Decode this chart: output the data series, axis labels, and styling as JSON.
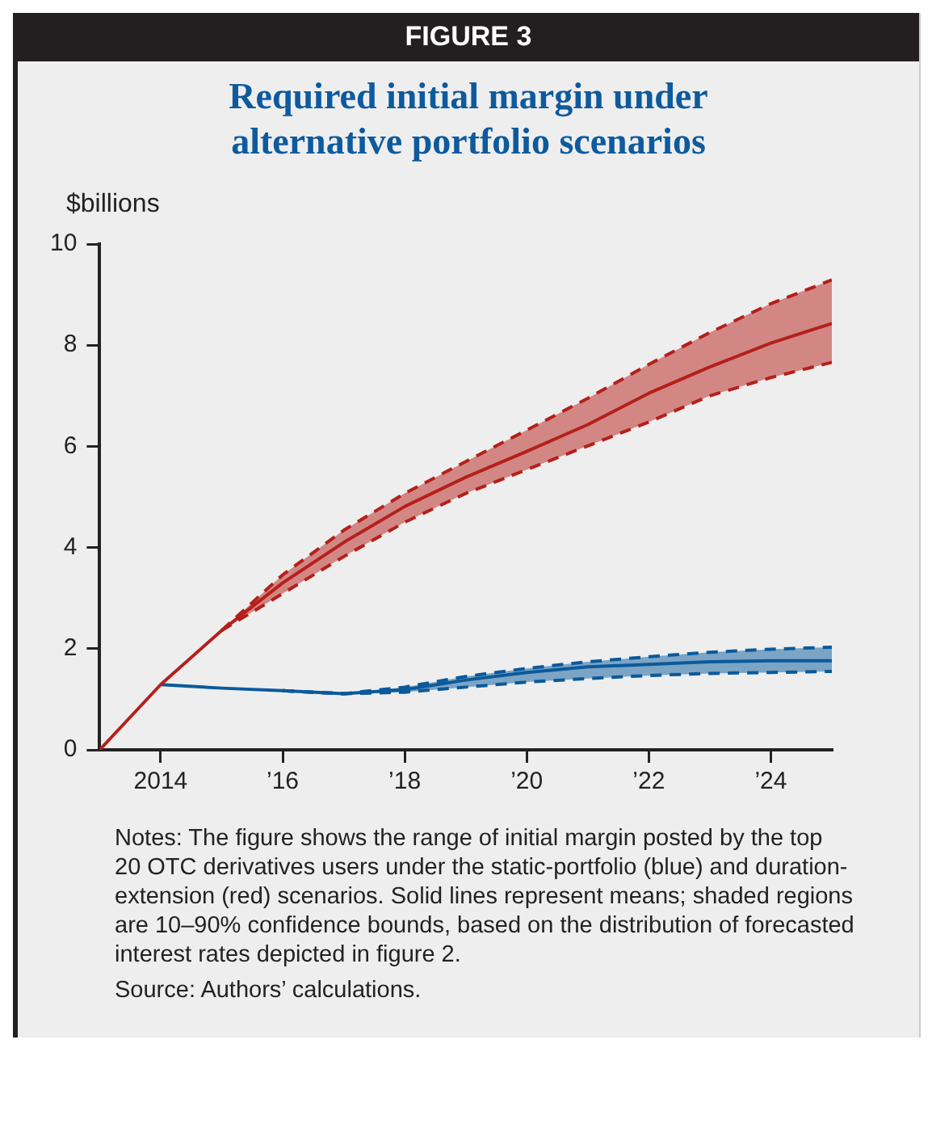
{
  "chart_data": {
    "type": "line",
    "subtitle": "FIGURE 3",
    "title": "Required initial margin under alternative portfolio scenarios",
    "ylabel": "$billions",
    "x": [
      2013,
      2014,
      2015,
      2016,
      2017,
      2018,
      2019,
      2020,
      2021,
      2022,
      2023,
      2024,
      2025
    ],
    "series": [
      {
        "color": "#b5201a",
        "line_style": "solid",
        "values": [
          0,
          1.29,
          2.36,
          3.3,
          4.1,
          4.81,
          5.39,
          5.9,
          6.43,
          7.05,
          7.57,
          8.04,
          8.43
        ],
        "lower": [
          null,
          null,
          2.36,
          3.09,
          3.82,
          4.5,
          5.07,
          5.54,
          6.01,
          6.48,
          7.0,
          7.36,
          7.66
        ],
        "upper": [
          null,
          null,
          2.36,
          3.46,
          4.34,
          5.07,
          5.7,
          6.32,
          6.95,
          7.62,
          8.25,
          8.82,
          9.29
        ]
      },
      {
        "color": "#0a5a9c",
        "line_style": "solid",
        "x": [
          2014,
          2015,
          2016,
          2017,
          2018,
          2019,
          2020,
          2021,
          2022,
          2023,
          2024,
          2025
        ],
        "values": [
          1.29,
          1.22,
          1.17,
          1.11,
          1.19,
          1.38,
          1.53,
          1.64,
          1.69,
          1.74,
          1.76,
          1.76
        ],
        "lower": [
          null,
          null,
          1.17,
          1.11,
          1.14,
          1.24,
          1.34,
          1.41,
          1.47,
          1.51,
          1.53,
          1.55
        ],
        "upper": [
          null,
          null,
          1.17,
          1.11,
          1.24,
          1.45,
          1.61,
          1.74,
          1.84,
          1.93,
          1.99,
          2.03
        ]
      },
      {
        "color": "#b5201a",
        "line_style": "dashed",
        "x": [
          2015,
          2016,
          2017,
          2018,
          2019,
          2020,
          2021,
          2022,
          2023,
          2024,
          2025
        ],
        "values": [
          2.36,
          3.09,
          3.82,
          4.5,
          5.07,
          5.54,
          6.01,
          6.48,
          7.0,
          7.36,
          7.66
        ]
      },
      {
        "color": "#b5201a",
        "line_style": "dashed",
        "x": [
          2015,
          2016,
          2017,
          2018,
          2019,
          2020,
          2021,
          2022,
          2023,
          2024,
          2025
        ],
        "values": [
          2.36,
          3.46,
          4.34,
          5.07,
          5.7,
          6.32,
          6.95,
          7.62,
          8.25,
          8.82,
          9.29
        ]
      },
      {
        "color": "#0a5a9c",
        "line_style": "dashed",
        "x": [
          2016,
          2017,
          2018,
          2019,
          2020,
          2021,
          2022,
          2023,
          2024,
          2025
        ],
        "values": [
          1.17,
          1.11,
          1.14,
          1.24,
          1.34,
          1.41,
          1.47,
          1.51,
          1.53,
          1.55
        ]
      },
      {
        "color": "#0a5a9c",
        "line_style": "dashed",
        "x": [
          2016,
          2017,
          2018,
          2019,
          2020,
          2021,
          2022,
          2023,
          2024,
          2025
        ],
        "values": [
          1.17,
          1.11,
          1.24,
          1.45,
          1.61,
          1.74,
          1.84,
          1.93,
          1.99,
          2.03
        ]
      }
    ],
    "xlim": [
      2013,
      2025
    ],
    "xticks": [
      2014,
      {
        "value": 2016,
        "label": "’16"
      },
      {
        "value": 2018,
        "label": "’18"
      },
      {
        "value": 2020,
        "label": "’20"
      },
      {
        "value": 2022,
        "label": "’22"
      },
      {
        "value": 2024,
        "label": "’24"
      }
    ],
    "ylim": [
      0,
      10
    ],
    "yticks": [
      0,
      2,
      4,
      6,
      8,
      10
    ],
    "grid": false,
    "legend": false,
    "annotations": [
      "Notes: The figure shows the range of initial margin posted by the top 20 OTC derivatives users under the static-portfolio (blue) and duration-extension (red) scenarios. Solid lines represent means; shaded regions are 10–90% confidence bounds, based on the distribution of forecasted interest rates depicted in figure 2.",
      "Source: Authors’ calculations."
    ]
  }
}
